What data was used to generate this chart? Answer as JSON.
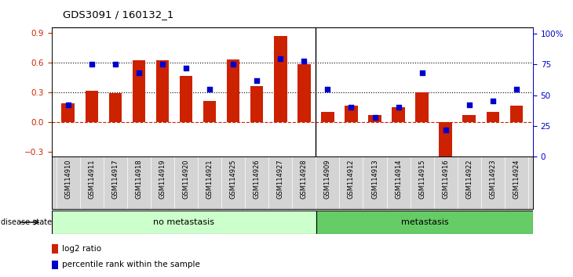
{
  "title": "GDS3091 / 160132_1",
  "samples": [
    "GSM114910",
    "GSM114911",
    "GSM114917",
    "GSM114918",
    "GSM114919",
    "GSM114920",
    "GSM114921",
    "GSM114925",
    "GSM114926",
    "GSM114927",
    "GSM114928",
    "GSM114909",
    "GSM114912",
    "GSM114913",
    "GSM114914",
    "GSM114915",
    "GSM114916",
    "GSM114922",
    "GSM114923",
    "GSM114924"
  ],
  "log2_ratio": [
    0.19,
    0.31,
    0.29,
    0.62,
    0.62,
    0.46,
    0.21,
    0.63,
    0.36,
    0.87,
    0.58,
    0.1,
    0.16,
    0.07,
    0.15,
    0.3,
    -0.35,
    0.07,
    0.1,
    0.16
  ],
  "percentile": [
    42,
    75,
    75,
    68,
    75,
    72,
    55,
    75,
    62,
    80,
    78,
    55,
    40,
    32,
    40,
    68,
    22,
    42,
    45,
    55
  ],
  "no_metastasis_count": 11,
  "metastasis_count": 9,
  "bar_color": "#cc2200",
  "dot_color": "#0000cc",
  "bar_width": 0.55,
  "ylim_left": [
    -0.35,
    0.95
  ],
  "ylim_right": [
    0,
    105
  ],
  "yticks_left": [
    -0.3,
    0.0,
    0.3,
    0.6,
    0.9
  ],
  "yticks_right": [
    0,
    25,
    50,
    75,
    100
  ],
  "dotted_line_vals": [
    0.3,
    0.6
  ],
  "no_meta_color": "#ccffcc",
  "meta_color": "#66cc66",
  "bg_color": "#ffffff",
  "tick_bg_color": "#d4d4d4"
}
